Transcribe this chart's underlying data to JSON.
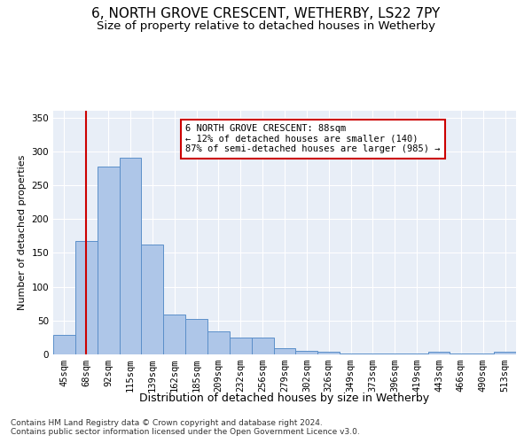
{
  "title1": "6, NORTH GROVE CRESCENT, WETHERBY, LS22 7PY",
  "title2": "Size of property relative to detached houses in Wetherby",
  "xlabel": "Distribution of detached houses by size in Wetherby",
  "ylabel": "Number of detached properties",
  "footnote1": "Contains HM Land Registry data © Crown copyright and database right 2024.",
  "footnote2": "Contains public sector information licensed under the Open Government Licence v3.0.",
  "categories": [
    "45sqm",
    "68sqm",
    "92sqm",
    "115sqm",
    "139sqm",
    "162sqm",
    "185sqm",
    "209sqm",
    "232sqm",
    "256sqm",
    "279sqm",
    "302sqm",
    "326sqm",
    "349sqm",
    "373sqm",
    "396sqm",
    "419sqm",
    "443sqm",
    "466sqm",
    "490sqm",
    "513sqm"
  ],
  "values": [
    29,
    167,
    277,
    290,
    162,
    59,
    53,
    34,
    25,
    25,
    9,
    5,
    4,
    1,
    1,
    1,
    1,
    4,
    1,
    1,
    4
  ],
  "bar_color": "#aec6e8",
  "bar_edge_color": "#5b8fc9",
  "annotation_text": "6 NORTH GROVE CRESCENT: 88sqm\n← 12% of detached houses are smaller (140)\n87% of semi-detached houses are larger (985) →",
  "annotation_box_color": "#ffffff",
  "annotation_box_edge_color": "#cc0000",
  "vline_color": "#cc0000",
  "vline_x": 1,
  "ylim": [
    0,
    360
  ],
  "yticks": [
    0,
    50,
    100,
    150,
    200,
    250,
    300,
    350
  ],
  "bg_color": "#e8eef7",
  "fig_bg_color": "#ffffff",
  "title1_fontsize": 11,
  "title2_fontsize": 9.5,
  "xlabel_fontsize": 9,
  "ylabel_fontsize": 8,
  "tick_fontsize": 7.5,
  "annotation_fontsize": 7.5,
  "footnote_fontsize": 6.5
}
